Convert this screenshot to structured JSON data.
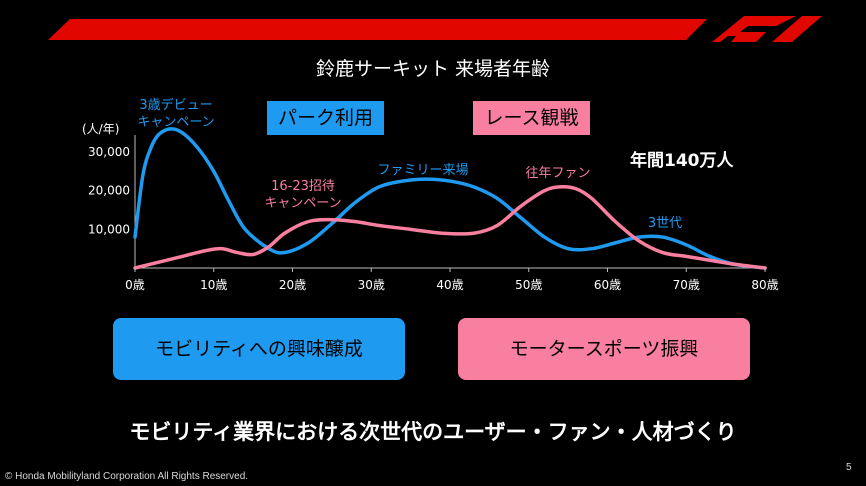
{
  "title": "鈴鹿サーキット 来場者年齢",
  "legend": {
    "park": "パーク利用",
    "race": "レース観戦"
  },
  "annual_visitors": "年間140万人",
  "pills": {
    "mobility": "モビリティへの興味醸成",
    "motorsport": "モータースポーツ振興"
  },
  "bottom_message": "モビリティ業界における次世代のユーザー・ファン・人材づくり",
  "copyright": "© Honda Mobilityland Corporation All Rights Reserved.",
  "page_number": "5",
  "colors": {
    "park": "#1e9bf0",
    "race": "#f97fa0",
    "brand_red": "#e10600"
  },
  "logo": "F1 logo",
  "chart_data": {
    "type": "line",
    "title": "鈴鹿サーキット 来場者年齢",
    "ylabel": "(人/年)",
    "xlabel": "",
    "xlim": [
      0,
      80
    ],
    "ylim": [
      0,
      37000
    ],
    "x_ticks": [
      0,
      10,
      20,
      30,
      40,
      50,
      60,
      70,
      80
    ],
    "x_tick_labels": [
      "0歳",
      "10歳",
      "20歳",
      "30歳",
      "40歳",
      "50歳",
      "60歳",
      "70歳",
      "80歳"
    ],
    "y_ticks": [
      10000,
      20000,
      30000
    ],
    "y_tick_labels": [
      "10,000",
      "20,000",
      "30,000"
    ],
    "grid": false,
    "series": [
      {
        "name": "パーク利用",
        "color": "#1e9bf0",
        "x": [
          0,
          1,
          2,
          3,
          4.5,
          6,
          8,
          10,
          12,
          14,
          17,
          19,
          22,
          25,
          28,
          31,
          34,
          37,
          40,
          43,
          46,
          49,
          52,
          55,
          58,
          61,
          64,
          67,
          70,
          73,
          76,
          80
        ],
        "values": [
          8000,
          24000,
          31000,
          34500,
          36000,
          35000,
          31000,
          25000,
          17000,
          10000,
          5000,
          4000,
          6500,
          11500,
          17000,
          21000,
          22500,
          23000,
          22500,
          21000,
          18000,
          13000,
          8000,
          5000,
          5000,
          6500,
          8000,
          8000,
          6000,
          3000,
          1000,
          0
        ]
      },
      {
        "name": "レース観戦",
        "color": "#f97fa0",
        "x": [
          0,
          3,
          6,
          9,
          11,
          13,
          15,
          17,
          19,
          22,
          25,
          28,
          31,
          35,
          39,
          43,
          46,
          49,
          52,
          54,
          56,
          58,
          61,
          64,
          67,
          70,
          73,
          76,
          80
        ],
        "values": [
          0,
          1500,
          3000,
          4500,
          5000,
          4000,
          3500,
          5500,
          9000,
          12000,
          12500,
          12000,
          11000,
          10000,
          9000,
          9000,
          11000,
          16000,
          20000,
          21000,
          20500,
          18000,
          12000,
          7000,
          4000,
          3000,
          2000,
          1000,
          0
        ]
      }
    ],
    "annotations": [
      {
        "text": "3歳デビュー キャンペーン",
        "x": 4.5,
        "y": 36000,
        "color": "#1e9bf0"
      },
      {
        "text": "16-23招待 キャンペーン",
        "x": 19,
        "y": 13000,
        "color": "#f97fa0"
      },
      {
        "text": "ファミリー来場",
        "x": 37,
        "y": 23000,
        "color": "#1e9bf0"
      },
      {
        "text": "往年ファン",
        "x": 54,
        "y": 21000,
        "color": "#f97fa0"
      },
      {
        "text": "3世代",
        "x": 67,
        "y": 8000,
        "color": "#1e9bf0"
      }
    ]
  }
}
